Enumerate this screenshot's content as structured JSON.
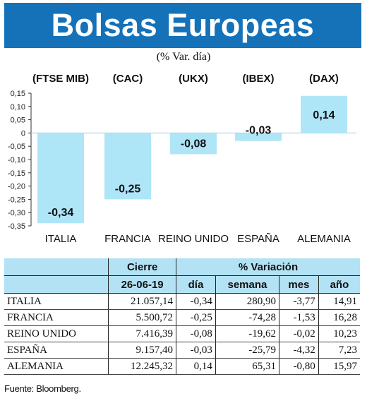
{
  "header": {
    "title": "Bolsas Europeas",
    "subtitle": "(% Var. día)"
  },
  "chart_data": {
    "type": "bar",
    "index_labels": [
      "(FTSE MIB)",
      "(CAC)",
      "(UKX)",
      "(IBEX)",
      "(DAX)"
    ],
    "categories": [
      "ITALIA",
      "FRANCIA",
      "REINO UNIDO",
      "ESPAÑA",
      "ALEMANIA"
    ],
    "values": [
      -0.34,
      -0.25,
      -0.08,
      -0.03,
      0.14
    ],
    "value_labels": [
      "-0,34",
      "-0,25",
      "-0,08",
      "-0,03",
      "0,14"
    ],
    "ylim": [
      -0.35,
      0.15
    ],
    "yticks": [
      0.15,
      0.1,
      0.05,
      0,
      -0.05,
      -0.1,
      -0.15,
      -0.2,
      -0.25,
      -0.3,
      -0.35
    ],
    "ytick_labels": [
      "0,15",
      "0,10",
      "0,05",
      "0",
      "-0,05",
      "-0,10",
      "-0,15",
      "-0,20",
      "-0,25",
      "-0,30",
      "-0,35"
    ],
    "bar_color": "#aee6f8",
    "grid": false
  },
  "table": {
    "group_headers": {
      "cierre": "Cierre",
      "variacion": "% Variación"
    },
    "sub_headers": {
      "date": "26-06-19",
      "dia": "día",
      "semana": "semana",
      "mes": "mes",
      "anio": "año"
    },
    "rows": [
      {
        "name": "ITALIA",
        "cierre": "21.057,14",
        "dia": "-0,34",
        "semana": "280,90",
        "mes": "-3,77",
        "anio": "14,91"
      },
      {
        "name": "FRANCIA",
        "cierre": "5.500,72",
        "dia": "-0,25",
        "semana": "-74,28",
        "mes": "-1,53",
        "anio": "16,28"
      },
      {
        "name": "REINO UNIDO",
        "cierre": "7.416,39",
        "dia": "-0,08",
        "semana": "-19,62",
        "mes": "-0,02",
        "anio": "10,23"
      },
      {
        "name": "ESPAÑA",
        "cierre": "9.157,40",
        "dia": "-0,03",
        "semana": "-25,79",
        "mes": "-4,32",
        "anio": "7,23"
      },
      {
        "name": "ALEMANIA",
        "cierre": "12.245,32",
        "dia": "0,14",
        "semana": "65,31",
        "mes": "-0,80",
        "anio": "15,97"
      }
    ]
  },
  "footer": {
    "source": "Fuente: Bloomberg."
  },
  "colors": {
    "header_bg": "#1572b8",
    "table_header_bg": "#b3e2f4",
    "bar": "#aee6f8"
  }
}
